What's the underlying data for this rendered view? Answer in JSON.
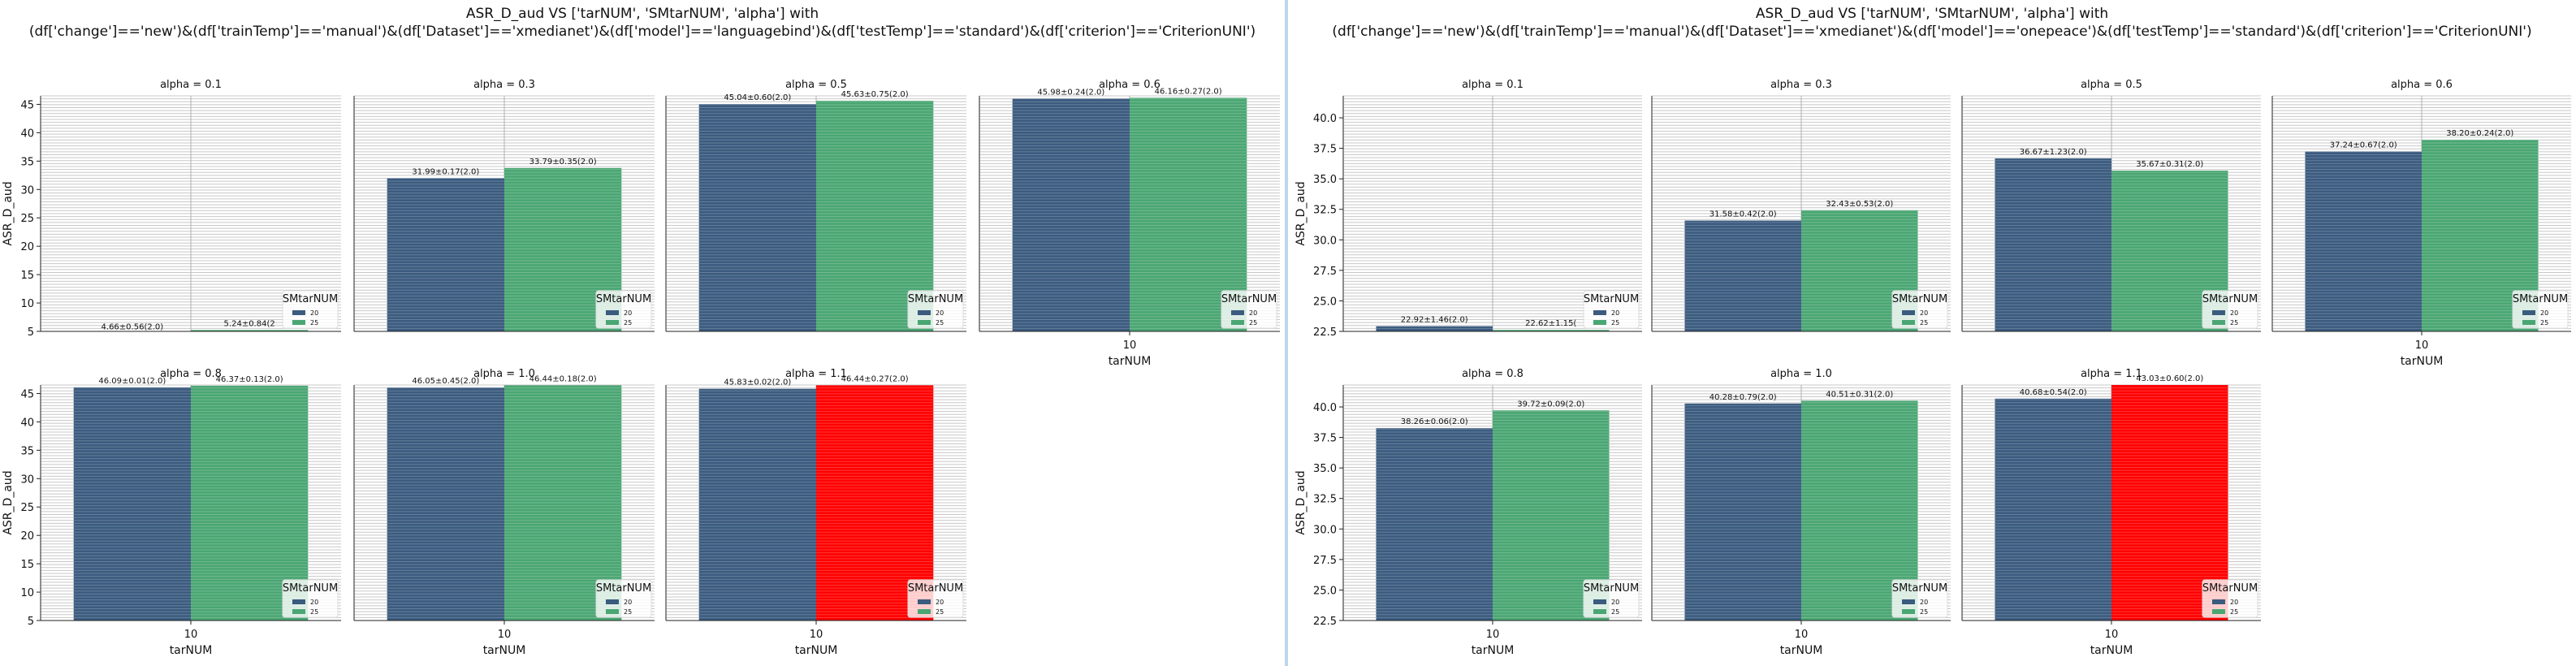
{
  "figures": [
    {
      "title_line1": "ASR_D_aud VS ['tarNUM', 'SMtarNUM', 'alpha'] with",
      "title_line2": "(df['change']=='new')&(df['trainTemp']=='manual')&(df['Dataset']=='xmedianet')&(df['model']=='languagebind')&(df['testTemp']=='standard')&(df['criterion']=='CriterionUNI')"
    },
    {
      "title_line1": "ASR_D_aud VS ['tarNUM', 'SMtarNUM', 'alpha'] with",
      "title_line2": "(df['change']=='new')&(df['trainTemp']=='manual')&(df['Dataset']=='xmedianet')&(df['model']=='onepeace')&(df['testTemp']=='standard')&(df['criterion']=='CriterionUNI')"
    }
  ],
  "chart_data": [
    {
      "type": "bar",
      "ylabel": "ASR_D_aud",
      "xlabel": "tarNUM",
      "categories": [
        "10"
      ],
      "legend_title": "SMtarNUM",
      "legend_entries": [
        "20",
        "25"
      ],
      "legend_position": "lower right",
      "ylim": [
        5,
        46.5
      ],
      "yticks": [
        5,
        10,
        15,
        20,
        25,
        30,
        35,
        40,
        45
      ],
      "ytick_labels": [
        "5",
        "10",
        "15",
        "20",
        "25",
        "30",
        "35",
        "40",
        "45"
      ],
      "colors": {
        "20": "#3b5b7f",
        "25": "#4aa673",
        "highlight": "#ff0000"
      },
      "panels": [
        {
          "title": "alpha = 0.1",
          "values": [
            4.66,
            5.24
          ],
          "labels": [
            "4.66±0.56(2.0)",
            "5.24±0.84(2"
          ],
          "highlight": false
        },
        {
          "title": "alpha = 0.3",
          "values": [
            31.99,
            33.79
          ],
          "labels": [
            "31.99±0.17(2.0)",
            "33.79±0.35(2.0)"
          ],
          "highlight": false
        },
        {
          "title": "alpha = 0.5",
          "values": [
            45.04,
            45.63
          ],
          "labels": [
            "45.04±0.60(2.0)",
            "45.63±0.75(2.0)"
          ],
          "highlight": false
        },
        {
          "title": "alpha = 0.6",
          "values": [
            45.98,
            46.16
          ],
          "labels": [
            "45.98±0.24(2.0)",
            "46.16±0.27(2.0)"
          ],
          "highlight": false
        },
        {
          "title": "alpha = 0.8",
          "values": [
            46.09,
            46.37
          ],
          "labels": [
            "46.09±0.01(2.0)",
            "46.37±0.13(2.0)"
          ],
          "highlight": false
        },
        {
          "title": "alpha = 1.0",
          "values": [
            46.05,
            46.44
          ],
          "labels": [
            "46.05±0.45(2.0)",
            "46.44±0.18(2.0)"
          ],
          "highlight": false
        },
        {
          "title": "alpha = 1.1",
          "values": [
            45.83,
            46.44
          ],
          "labels": [
            "45.83±0.02(2.0)",
            "46.44±0.27(2.0)"
          ],
          "highlight": true
        }
      ]
    },
    {
      "type": "bar",
      "ylabel": "ASR_D_aud",
      "xlabel": "tarNUM",
      "categories": [
        "10"
      ],
      "legend_title": "SMtarNUM",
      "legend_entries": [
        "20",
        "25"
      ],
      "legend_position": "lower right",
      "ylim": [
        22.5,
        41.8
      ],
      "yticks": [
        22.5,
        25.0,
        27.5,
        30.0,
        32.5,
        35.0,
        37.5,
        40.0
      ],
      "ytick_labels": [
        "22.5",
        "25.0",
        "27.5",
        "30.0",
        "32.5",
        "35.0",
        "37.5",
        "40.0"
      ],
      "colors": {
        "20": "#3b5b7f",
        "25": "#4aa673",
        "highlight": "#ff0000"
      },
      "panels": [
        {
          "title": "alpha = 0.1",
          "values": [
            22.92,
            22.62
          ],
          "labels": [
            "22.92±1.46(2.0)",
            "22.62±1.15("
          ],
          "highlight": false
        },
        {
          "title": "alpha = 0.3",
          "values": [
            31.58,
            32.43
          ],
          "labels": [
            "31.58±0.42(2.0)",
            "32.43±0.53(2.0)"
          ],
          "highlight": false
        },
        {
          "title": "alpha = 0.5",
          "values": [
            36.67,
            35.67
          ],
          "labels": [
            "36.67±1.23(2.0)",
            "35.67±0.31(2.0)"
          ],
          "highlight": false
        },
        {
          "title": "alpha = 0.6",
          "values": [
            37.24,
            38.2
          ],
          "labels": [
            "37.24±0.67(2.0)",
            "38.20±0.24(2.0)"
          ],
          "highlight": false
        },
        {
          "title": "alpha = 0.8",
          "values": [
            38.26,
            39.72
          ],
          "labels": [
            "38.26±0.06(2.0)",
            "39.72±0.09(2.0)"
          ],
          "highlight": false
        },
        {
          "title": "alpha = 1.0",
          "values": [
            40.28,
            40.51
          ],
          "labels": [
            "40.28±0.79(2.0)",
            "40.51±0.31(2.0)"
          ],
          "highlight": false
        },
        {
          "title": "alpha = 1.1",
          "values": [
            40.68,
            43.03
          ],
          "labels": [
            "40.68±0.54(2.0)",
            "43.03±0.60(2.0)"
          ],
          "highlight": true
        }
      ]
    }
  ]
}
